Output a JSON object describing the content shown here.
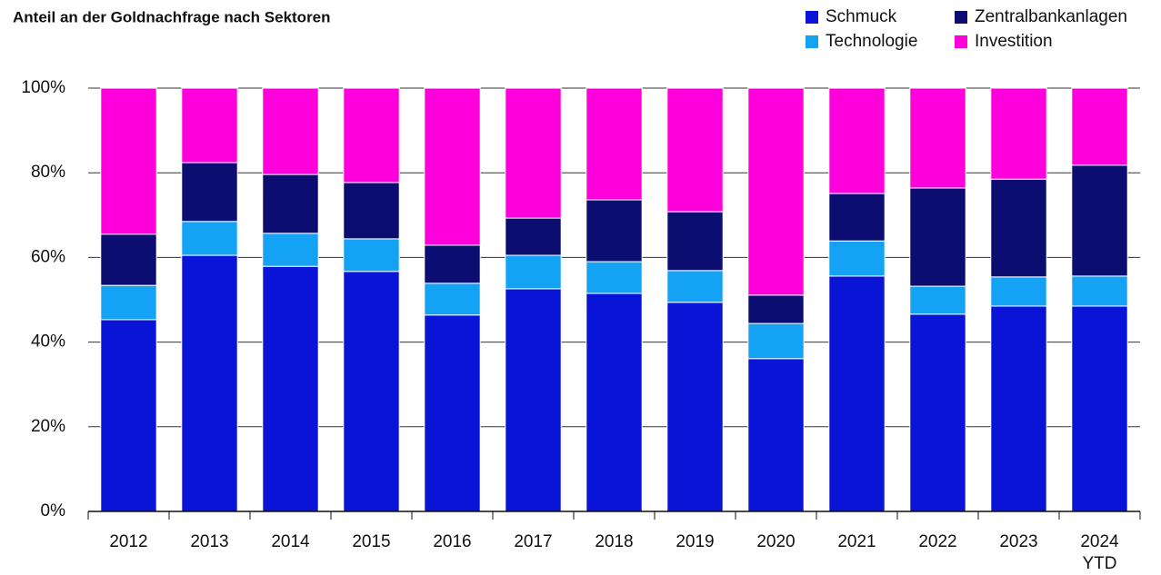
{
  "chart_data": {
    "type": "stacked_bar",
    "title": "Anteil an der Goldnachfrage nach Sektoren",
    "categories": [
      "2012",
      "2013",
      "2014",
      "2015",
      "2016",
      "2017",
      "2018",
      "2019",
      "2020",
      "2021",
      "2022",
      "2023",
      "2024 YTD"
    ],
    "series": [
      {
        "name": "Schmuck",
        "color": "#0a14d6",
        "values": [
          45.3,
          60.5,
          57.9,
          56.7,
          46.4,
          52.6,
          51.5,
          49.4,
          36.1,
          55.6,
          46.6,
          48.5,
          48.5
        ]
      },
      {
        "name": "Technologie",
        "color": "#13a2f4",
        "values": [
          8.1,
          8.0,
          7.8,
          7.7,
          7.5,
          7.9,
          7.5,
          7.5,
          8.3,
          8.3,
          6.6,
          6.9,
          7.1
        ]
      },
      {
        "name": "Zentralbankanlagen",
        "color": "#0b0e70",
        "values": [
          12.1,
          13.9,
          13.9,
          13.3,
          9.0,
          8.8,
          14.6,
          13.9,
          6.7,
          11.2,
          23.2,
          23.1,
          26.2
        ]
      },
      {
        "name": "Investition",
        "color": "#ff00dc",
        "values": [
          34.5,
          17.6,
          20.4,
          22.3,
          37.1,
          30.7,
          26.4,
          29.2,
          48.9,
          24.9,
          23.6,
          21.5,
          18.2
        ]
      }
    ],
    "ylim": [
      0,
      100
    ],
    "yticks": [
      {
        "value": 0,
        "label": "0%"
      },
      {
        "value": 20,
        "label": "20%"
      },
      {
        "value": 40,
        "label": "40%"
      },
      {
        "value": 60,
        "label": "60%"
      },
      {
        "value": 80,
        "label": "80%"
      },
      {
        "value": 100,
        "label": "100%"
      }
    ],
    "grid": true,
    "legend": "top-right"
  }
}
